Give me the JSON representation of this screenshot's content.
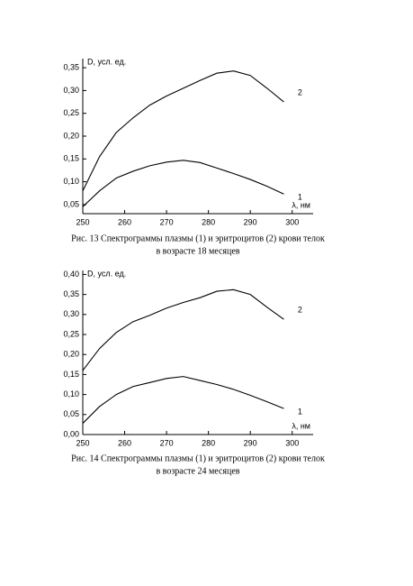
{
  "chart_data": [
    {
      "type": "line",
      "y_label": "D, усл. ед.",
      "x_label": "λ, нм",
      "caption": [
        "Рис. 13 Спектрограммы плазмы (1) и эритроцитов (2) крови телок",
        "в возрасте 18 месяцев"
      ],
      "x": [
        250,
        254,
        258,
        262,
        266,
        270,
        274,
        278,
        282,
        286,
        290,
        294,
        298
      ],
      "series": [
        {
          "name": "1",
          "color": "#000000",
          "values": [
            0.045,
            0.08,
            0.108,
            0.123,
            0.135,
            0.143,
            0.147,
            0.142,
            0.13,
            0.118,
            0.105,
            0.09,
            0.073
          ]
        },
        {
          "name": "2",
          "color": "#000000",
          "values": [
            0.08,
            0.155,
            0.208,
            0.24,
            0.268,
            0.288,
            0.305,
            0.322,
            0.338,
            0.343,
            0.333,
            0.305,
            0.275
          ]
        }
      ],
      "xlim": [
        250,
        305
      ],
      "xticks": [
        250,
        260,
        270,
        280,
        290,
        300
      ],
      "ylim": [
        0.03,
        0.37
      ],
      "yticks": [
        {
          "value": 0.05,
          "label": "0,05"
        },
        {
          "value": 0.1,
          "label": "0,10"
        },
        {
          "value": 0.15,
          "label": "0,15"
        },
        {
          "value": 0.2,
          "label": "0,20"
        },
        {
          "value": 0.25,
          "label": "0,25"
        },
        {
          "value": 0.3,
          "label": "0,30"
        },
        {
          "value": 0.35,
          "label": "0,35"
        }
      ]
    },
    {
      "type": "line",
      "y_label": "D, усл. ед.",
      "x_label": "λ, нм",
      "caption": [
        "Рис. 14 Спектрограммы плазмы (1) и эритроцитов (2) крови телок",
        "в возрасте 24 месяцев"
      ],
      "x": [
        250,
        254,
        258,
        262,
        266,
        270,
        274,
        278,
        282,
        286,
        290,
        294,
        298
      ],
      "series": [
        {
          "name": "1",
          "color": "#000000",
          "values": [
            0.028,
            0.07,
            0.1,
            0.12,
            0.13,
            0.14,
            0.145,
            0.135,
            0.125,
            0.113,
            0.098,
            0.082,
            0.065
          ]
        },
        {
          "name": "2",
          "color": "#000000",
          "values": [
            0.16,
            0.215,
            0.255,
            0.282,
            0.298,
            0.316,
            0.33,
            0.342,
            0.358,
            0.362,
            0.35,
            0.318,
            0.288
          ]
        }
      ],
      "xlim": [
        250,
        305
      ],
      "xticks": [
        250,
        260,
        270,
        280,
        290,
        300
      ],
      "ylim": [
        0,
        0.41
      ],
      "yticks": [
        {
          "value": 0,
          "label": "0,00"
        },
        {
          "value": 0.05,
          "label": "0,05"
        },
        {
          "value": 0.1,
          "label": "0,10"
        },
        {
          "value": 0.15,
          "label": "0,15"
        },
        {
          "value": 0.2,
          "label": "0,20"
        },
        {
          "value": 0.25,
          "label": "0,25"
        },
        {
          "value": 0.3,
          "label": "0,30"
        },
        {
          "value": 0.35,
          "label": "0,35"
        },
        {
          "value": 0.4,
          "label": "0,40"
        }
      ]
    }
  ]
}
